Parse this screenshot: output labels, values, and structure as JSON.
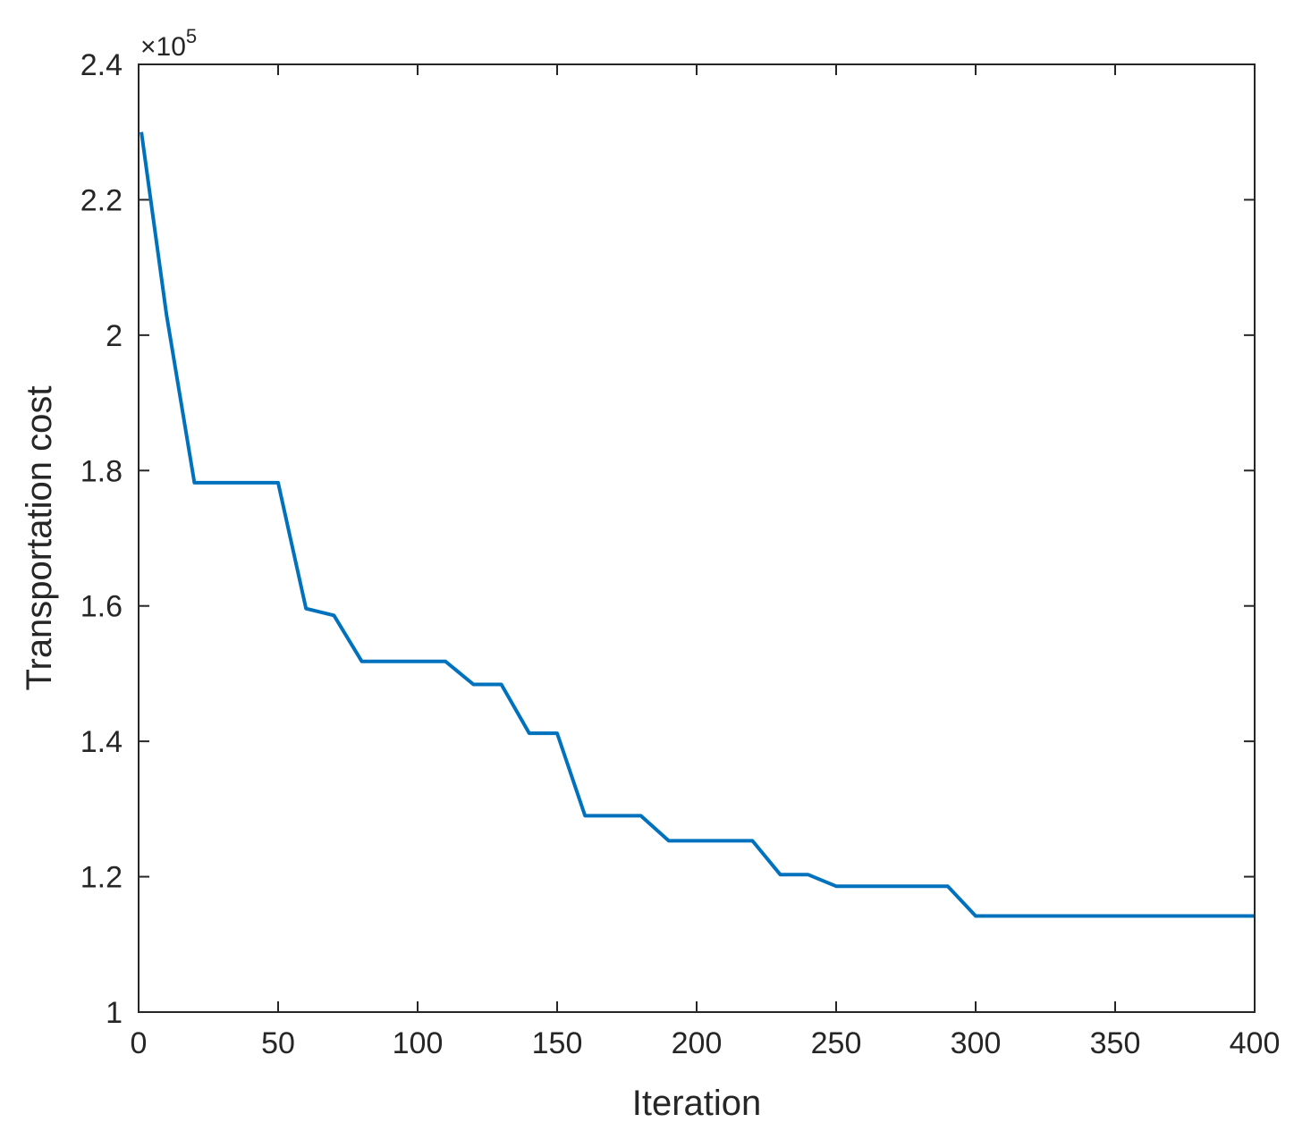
{
  "chart_data": {
    "type": "line",
    "xlabel": "Iteration",
    "ylabel": "Transportation cost",
    "xlim": [
      0,
      400
    ],
    "ylim": [
      1,
      2.4
    ],
    "y_multiplier": "×10",
    "y_multiplier_exponent": "5",
    "xticks": [
      0,
      50,
      100,
      150,
      200,
      250,
      300,
      350,
      400
    ],
    "yticks": [
      1,
      1.2,
      1.4,
      1.6,
      1.8,
      2,
      2.2,
      2.4
    ],
    "xtick_labels": [
      "0",
      "50",
      "100",
      "150",
      "200",
      "250",
      "300",
      "350",
      "400"
    ],
    "ytick_labels": [
      "1",
      "1.2",
      "1.4",
      "1.6",
      "1.8",
      "2",
      "2.2",
      "2.4"
    ],
    "grid": false,
    "line_color": "#0072bd",
    "series": [
      {
        "x": [
          1,
          10,
          20,
          30,
          40,
          50,
          60,
          70,
          80,
          90,
          100,
          110,
          120,
          130,
          140,
          150,
          160,
          170,
          180,
          190,
          200,
          210,
          220,
          230,
          240,
          250,
          260,
          270,
          280,
          290,
          300,
          310,
          320,
          330,
          340,
          350,
          360,
          370,
          380,
          390,
          400
        ],
        "values": [
          2.3,
          2.03,
          1.782,
          1.782,
          1.782,
          1.782,
          1.596,
          1.586,
          1.518,
          1.518,
          1.518,
          1.518,
          1.484,
          1.484,
          1.412,
          1.412,
          1.29,
          1.29,
          1.29,
          1.253,
          1.253,
          1.253,
          1.253,
          1.203,
          1.203,
          1.186,
          1.186,
          1.186,
          1.186,
          1.186,
          1.142,
          1.142,
          1.142,
          1.142,
          1.142,
          1.142,
          1.142,
          1.142,
          1.142,
          1.142,
          1.142
        ]
      }
    ]
  }
}
